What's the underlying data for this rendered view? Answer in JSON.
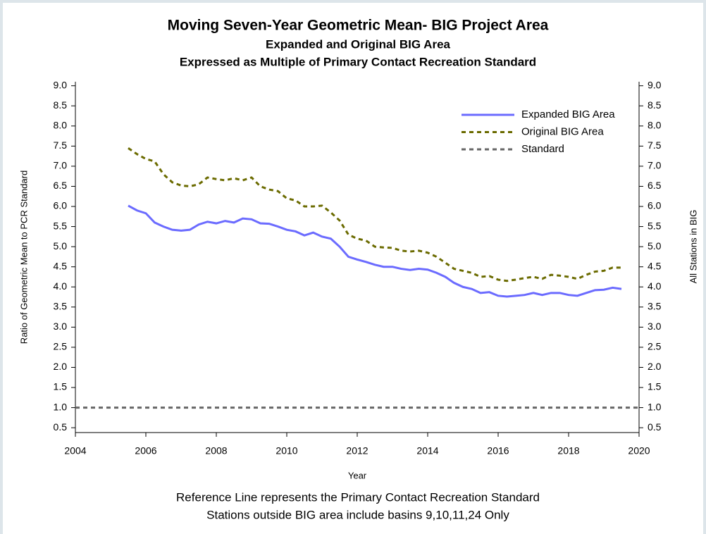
{
  "chart_data": {
    "type": "line",
    "title": "Moving Seven-Year Geometric Mean- BIG Project Area",
    "subtitle": [
      "Expanded and  Original BIG Area",
      "Expressed as Multiple of Primary Contact Recreation Standard"
    ],
    "footnotes": [
      "Reference Line represents the Primary Contact Recreation Standard",
      "Stations outside BIG area include basins 9,10,11,24 Only"
    ],
    "xlabel": "Year",
    "ylabel": "Ratio of Geometric Mean to PCR Standard",
    "y2label": "All Stations in BIG",
    "x": [
      2005.5,
      2005.75,
      2006,
      2006.25,
      2006.5,
      2006.75,
      2007,
      2007.25,
      2007.5,
      2007.75,
      2008,
      2008.25,
      2008.5,
      2008.75,
      2009,
      2009.25,
      2009.5,
      2009.75,
      2010,
      2010.25,
      2010.5,
      2010.75,
      2011,
      2011.25,
      2011.5,
      2011.75,
      2012,
      2012.25,
      2012.5,
      2012.75,
      2013,
      2013.25,
      2013.5,
      2013.75,
      2014,
      2014.25,
      2014.5,
      2014.75,
      2015,
      2015.25,
      2015.5,
      2015.75,
      2016,
      2016.25,
      2016.5,
      2016.75,
      2017,
      2017.25,
      2017.5,
      2017.75,
      2018,
      2018.25,
      2018.5,
      2018.75,
      2019,
      2019.25,
      2019.5
    ],
    "series": [
      {
        "name": "Expanded BIG Area",
        "color": "#6b6bff",
        "dash": "solid",
        "values": [
          6.02,
          5.9,
          5.83,
          5.6,
          5.5,
          5.42,
          5.4,
          5.42,
          5.55,
          5.62,
          5.58,
          5.64,
          5.6,
          5.7,
          5.68,
          5.58,
          5.57,
          5.5,
          5.42,
          5.38,
          5.28,
          5.35,
          5.25,
          5.2,
          5.0,
          4.75,
          4.68,
          4.62,
          4.55,
          4.5,
          4.5,
          4.45,
          4.42,
          4.45,
          4.43,
          4.35,
          4.25,
          4.1,
          4.0,
          3.95,
          3.85,
          3.87,
          3.78,
          3.76,
          3.78,
          3.8,
          3.85,
          3.8,
          3.85,
          3.85,
          3.8,
          3.78,
          3.85,
          3.92,
          3.93,
          3.98,
          3.95
        ]
      },
      {
        "name": "Original BIG Area",
        "color": "#6b6b00",
        "dash": "dashed",
        "values": [
          7.45,
          7.3,
          7.18,
          7.12,
          6.8,
          6.6,
          6.52,
          6.5,
          6.55,
          6.72,
          6.68,
          6.65,
          6.7,
          6.65,
          6.72,
          6.5,
          6.42,
          6.38,
          6.2,
          6.15,
          6.0,
          6.0,
          6.02,
          5.85,
          5.65,
          5.3,
          5.2,
          5.15,
          5.0,
          4.98,
          4.97,
          4.9,
          4.88,
          4.9,
          4.85,
          4.75,
          4.6,
          4.45,
          4.4,
          4.35,
          4.25,
          4.27,
          4.18,
          4.15,
          4.18,
          4.22,
          4.25,
          4.2,
          4.3,
          4.28,
          4.25,
          4.2,
          4.3,
          4.38,
          4.4,
          4.48,
          4.48
        ]
      }
    ],
    "reference_line": {
      "name": "Standard",
      "value": 1,
      "color": "#666666",
      "dash": "dashed"
    },
    "xlim": [
      2004,
      2020
    ],
    "xticks": [
      2004,
      2006,
      2008,
      2010,
      2012,
      2014,
      2016,
      2018,
      2020
    ],
    "ylim": [
      0.38,
      9.1
    ],
    "yticks": [
      0.5,
      {
        "value": 1,
        "label": "1.0"
      },
      1.5,
      {
        "value": 2,
        "label": "2.0"
      },
      2.5,
      {
        "value": 3,
        "label": "3.0"
      },
      3.5,
      {
        "value": 4,
        "label": "4.0"
      },
      4.5,
      {
        "value": 5,
        "label": "5.0"
      },
      5.5,
      {
        "value": 6,
        "label": "6.0"
      },
      6.5,
      {
        "value": 7,
        "label": "7.0"
      },
      7.5,
      {
        "value": 8,
        "label": "8.0"
      },
      8.5,
      {
        "value": 9,
        "label": "9.0"
      }
    ],
    "y2lim": [
      0.38,
      9.1
    ],
    "y2ticks": [
      0.5,
      {
        "value": 1,
        "label": "1.0"
      },
      1.5,
      {
        "value": 2,
        "label": "2.0"
      },
      2.5,
      {
        "value": 3,
        "label": "3.0"
      },
      3.5,
      {
        "value": 4,
        "label": "4.0"
      },
      4.5,
      {
        "value": 5,
        "label": "5.0"
      },
      5.5,
      {
        "value": 6,
        "label": "6.0"
      },
      6.5,
      {
        "value": 7,
        "label": "7.0"
      },
      7.5,
      {
        "value": 8,
        "label": "8.0"
      },
      8.5,
      {
        "value": 9,
        "label": "9.0"
      }
    ],
    "legend": "top-right"
  }
}
